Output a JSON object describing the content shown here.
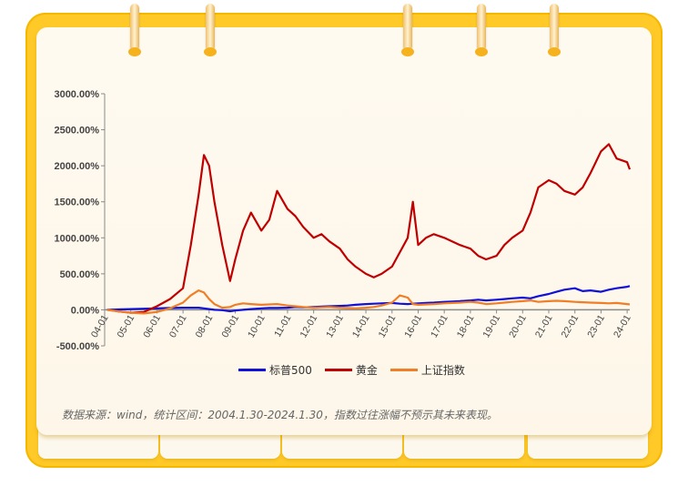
{
  "chart_data": {
    "type": "line",
    "ylim": [
      -500,
      3000
    ],
    "yticks": [
      {
        "value": 3000,
        "label": "3000.00%"
      },
      {
        "value": 2500,
        "label": "2500.00%"
      },
      {
        "value": 2000,
        "label": "2000.00%"
      },
      {
        "value": 1500,
        "label": "1500.00%"
      },
      {
        "value": 1000,
        "label": "1000.00%"
      },
      {
        "value": 500,
        "label": "500.00%"
      },
      {
        "value": 0,
        "label": "0.00%"
      },
      {
        "value": -500,
        "label": "-500.00%"
      }
    ],
    "xticks": [
      "04-01",
      "05-01",
      "06-01",
      "07-01",
      "08-01",
      "09-01",
      "10-01",
      "11-01",
      "12-01",
      "13-01",
      "14-01",
      "15-01",
      "16-01",
      "17-01",
      "18-01",
      "19-01",
      "20-01",
      "21-01",
      "22-01",
      "23-01",
      "24-01"
    ],
    "x": [
      2004.1,
      2004.5,
      2005.0,
      2005.5,
      2006.0,
      2006.5,
      2007.0,
      2007.3,
      2007.6,
      2007.8,
      2008.0,
      2008.2,
      2008.5,
      2008.8,
      2009.0,
      2009.3,
      2009.6,
      2010.0,
      2010.3,
      2010.6,
      2011.0,
      2011.3,
      2011.6,
      2012.0,
      2012.3,
      2012.6,
      2013.0,
      2013.3,
      2013.6,
      2014.0,
      2014.3,
      2014.6,
      2015.0,
      2015.3,
      2015.6,
      2015.8,
      2016.0,
      2016.3,
      2016.6,
      2017.0,
      2017.3,
      2017.6,
      2018.0,
      2018.3,
      2018.6,
      2019.0,
      2019.3,
      2019.6,
      2020.0,
      2020.3,
      2020.6,
      2021.0,
      2021.3,
      2021.6,
      2022.0,
      2022.3,
      2022.6,
      2023.0,
      2023.3,
      2023.6,
      2024.0,
      2024.1
    ],
    "series": [
      {
        "name": "标普500",
        "color": "#1010d8",
        "values": [
          0,
          5,
          10,
          15,
          20,
          25,
          30,
          30,
          30,
          20,
          10,
          0,
          -5,
          -20,
          -10,
          0,
          10,
          20,
          25,
          25,
          30,
          40,
          35,
          40,
          45,
          50,
          55,
          60,
          70,
          80,
          85,
          90,
          95,
          85,
          80,
          85,
          90,
          95,
          100,
          110,
          115,
          120,
          130,
          140,
          130,
          140,
          150,
          160,
          170,
          160,
          190,
          220,
          250,
          280,
          300,
          260,
          270,
          250,
          280,
          300,
          320,
          330
        ]
      },
      {
        "name": "黄金",
        "color": "#c00000",
        "values": [
          0,
          -20,
          -40,
          -30,
          50,
          150,
          300,
          900,
          1600,
          2150,
          2000,
          1500,
          900,
          400,
          700,
          1100,
          1350,
          1100,
          1250,
          1650,
          1400,
          1300,
          1150,
          1000,
          1050,
          950,
          850,
          700,
          600,
          500,
          450,
          500,
          600,
          800,
          1000,
          1500,
          900,
          1000,
          1050,
          1000,
          950,
          900,
          850,
          750,
          700,
          750,
          900,
          1000,
          1100,
          1350,
          1700,
          1800,
          1750,
          1650,
          1600,
          1700,
          1900,
          2200,
          2300,
          2100,
          2050,
          1950
        ]
      },
      {
        "name": "上证指数",
        "color": "#f07e26",
        "values": [
          0,
          -20,
          -40,
          -50,
          -30,
          20,
          100,
          200,
          270,
          240,
          150,
          80,
          30,
          40,
          70,
          90,
          80,
          70,
          75,
          80,
          60,
          50,
          40,
          30,
          35,
          40,
          30,
          25,
          20,
          30,
          40,
          60,
          100,
          200,
          170,
          80,
          70,
          75,
          80,
          90,
          95,
          100,
          110,
          100,
          80,
          90,
          100,
          110,
          120,
          130,
          110,
          120,
          125,
          120,
          110,
          105,
          100,
          95,
          90,
          95,
          80,
          75
        ]
      }
    ],
    "note": "数据来源：wind，统计区间：2004.1.30-2024.1.30，指数过往涨幅不预示其未来表现。"
  }
}
